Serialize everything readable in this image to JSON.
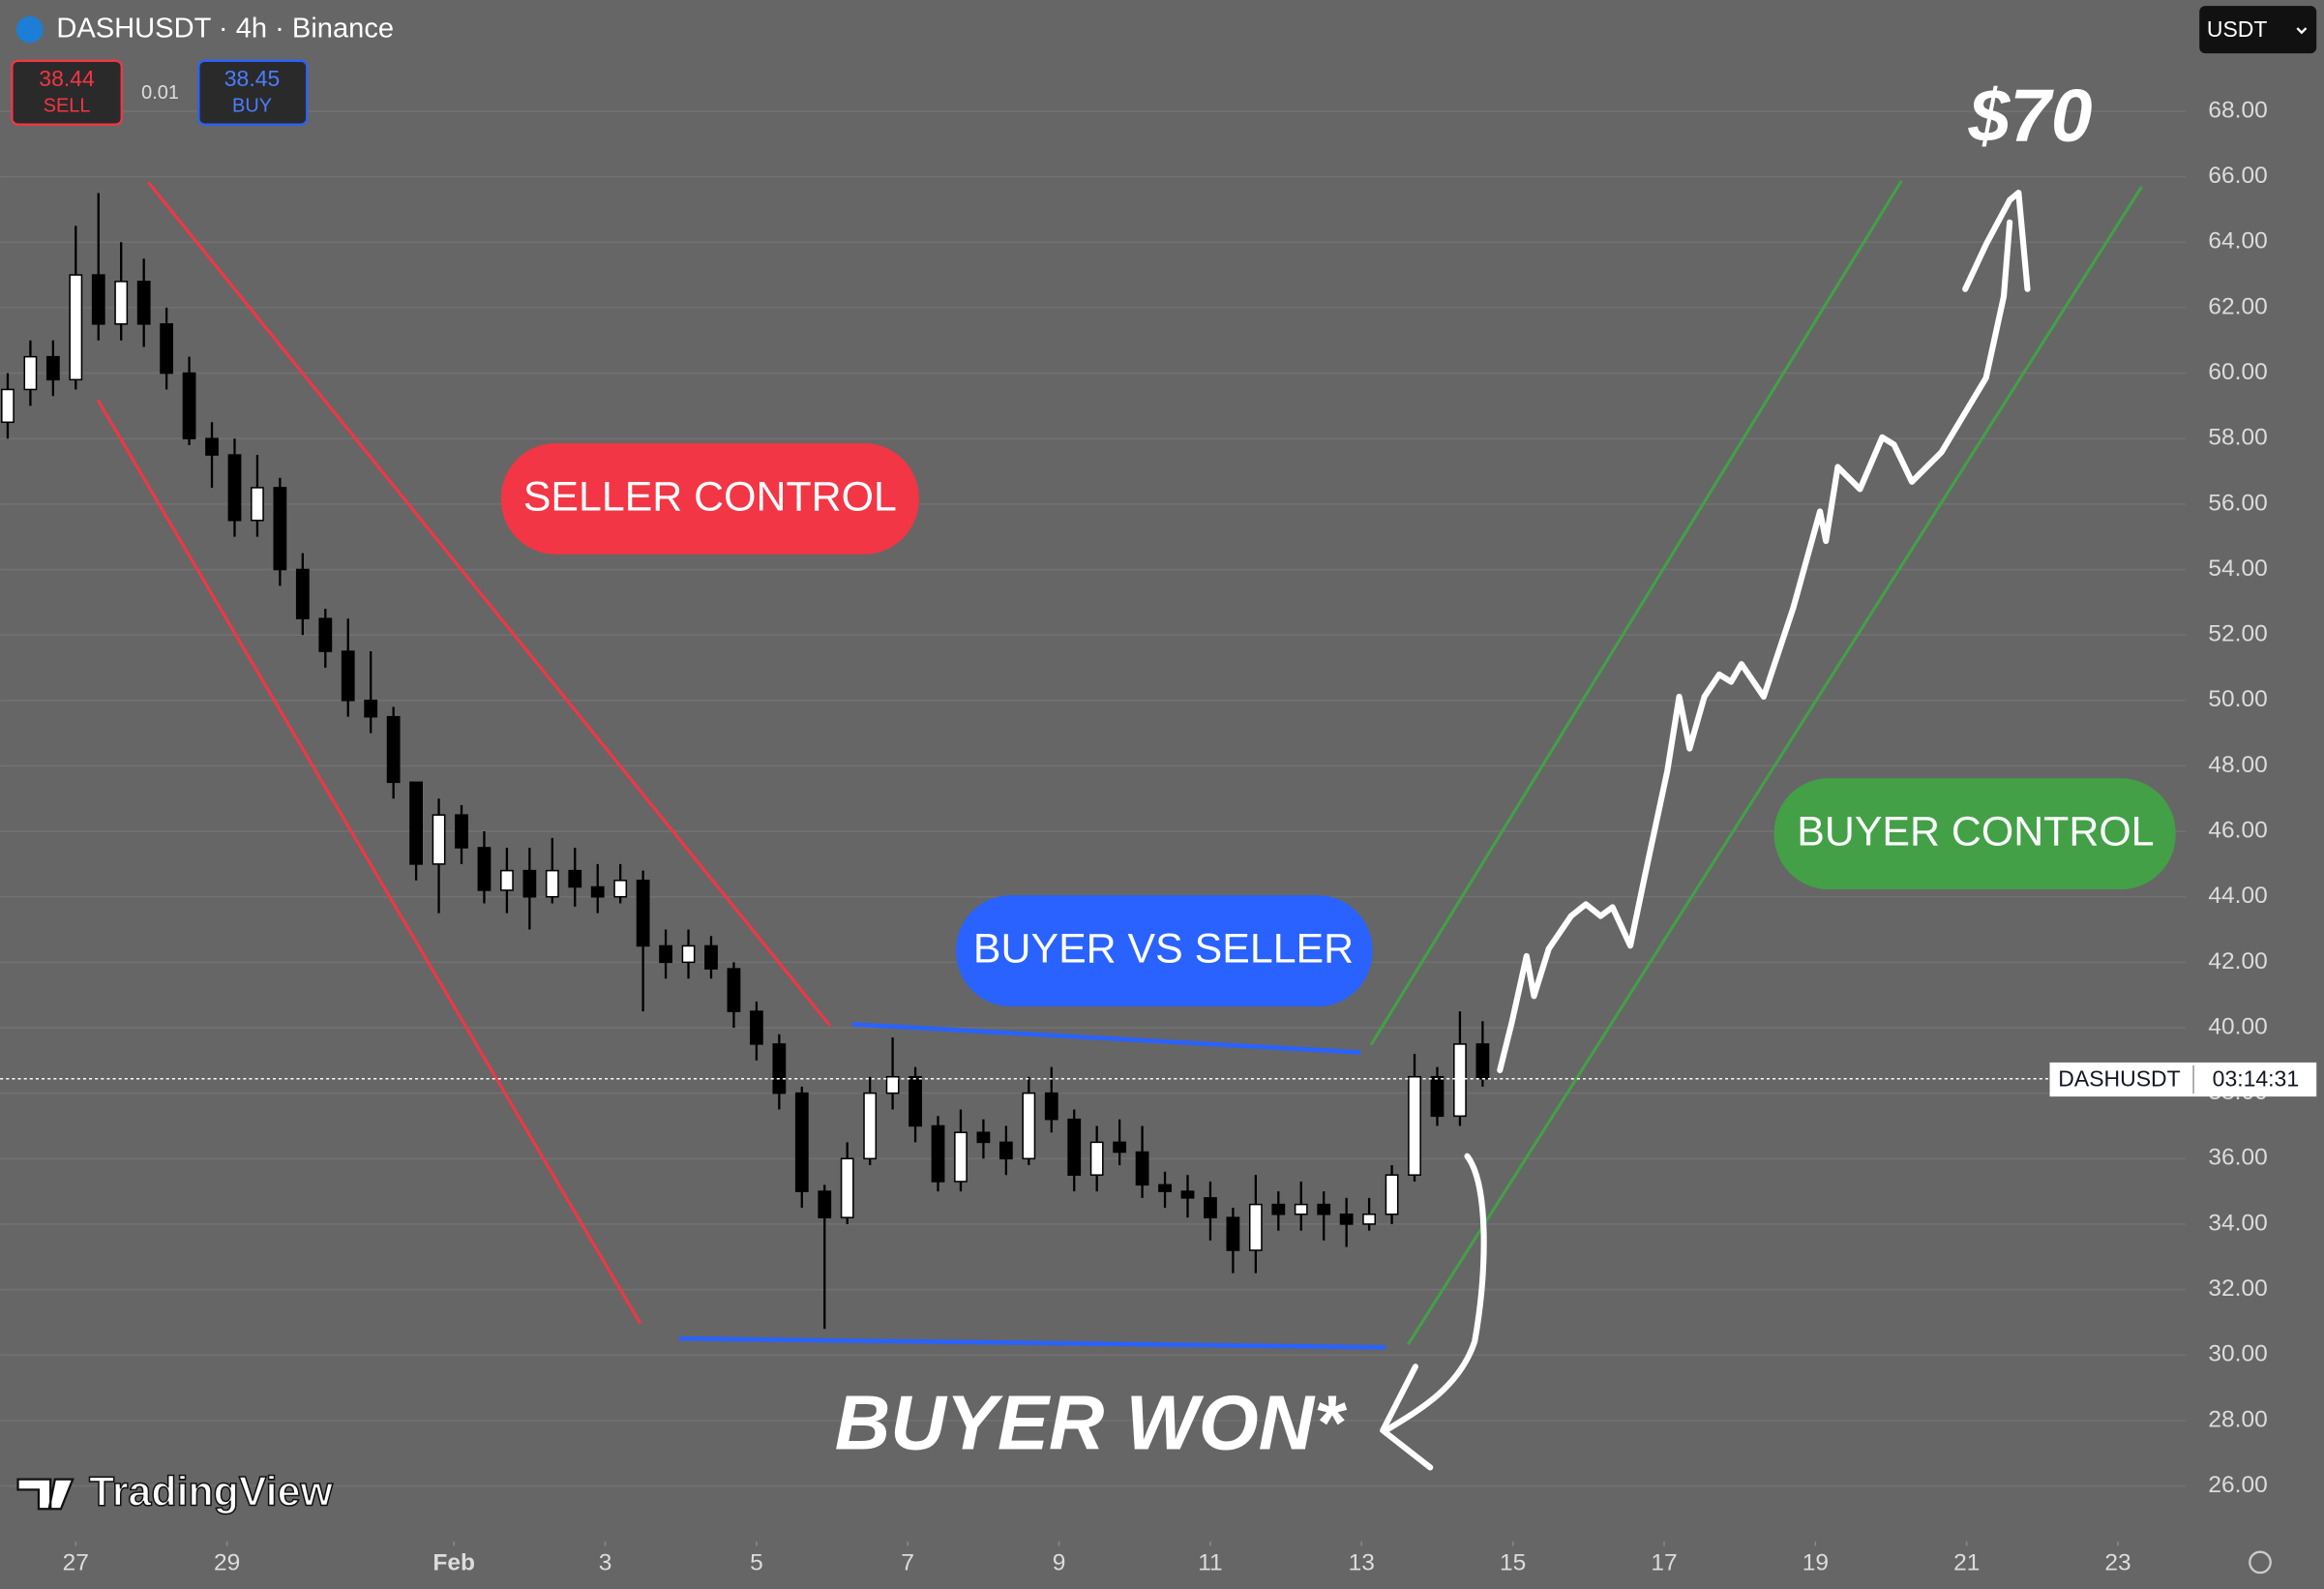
{
  "header": {
    "symbol": "DASHUSDT · 4h · Binance",
    "sell_price": "38.44",
    "sell_label": "SELL",
    "spread": "0.01",
    "buy_price": "38.45",
    "buy_label": "BUY",
    "currency": "USDT"
  },
  "price_tag": {
    "symbol": "DASHUSDT",
    "countdown": "03:14:31"
  },
  "watermark": "TradingView",
  "annotations": [
    "SELLER CONTROL",
    "BUYER VS SELLER",
    "BUYER CONTROL",
    "BUYER WON*",
    "$70"
  ],
  "chart_data": {
    "type": "candlestick",
    "up_color": "#ffffff",
    "down_color": "#000000",
    "grid": true,
    "xlim": [
      26.0,
      54.9
    ],
    "ylim": [
      24.3,
      71.4
    ],
    "xticks": [
      27,
      29,
      {
        "value": 32,
        "label": "Feb"
      },
      {
        "value": 34,
        "label": "3"
      },
      {
        "value": 36,
        "label": "5"
      },
      {
        "value": 38,
        "label": "7"
      },
      {
        "value": 40,
        "label": "9"
      },
      {
        "value": 42,
        "label": "11"
      },
      {
        "value": 44,
        "label": "13"
      },
      {
        "value": 46,
        "label": "15"
      },
      {
        "value": 48,
        "label": "17"
      },
      {
        "value": 50,
        "label": "19"
      },
      {
        "value": 52,
        "label": "21"
      },
      {
        "value": 54,
        "label": "23"
      }
    ],
    "yticks": [
      {
        "value": 26,
        "label": "26.00"
      },
      {
        "value": 28,
        "label": "28.00"
      },
      {
        "value": 30,
        "label": "30.00"
      },
      {
        "value": 32,
        "label": "32.00"
      },
      {
        "value": 34,
        "label": "34.00"
      },
      {
        "value": 36,
        "label": "36.00"
      },
      {
        "value": 38,
        "label": "38.00"
      },
      {
        "value": 40,
        "label": "40.00"
      },
      {
        "value": 42,
        "label": "42.00"
      },
      {
        "value": 44,
        "label": "44.00"
      },
      {
        "value": 46,
        "label": "46.00"
      },
      {
        "value": 48,
        "label": "48.00"
      },
      {
        "value": 50,
        "label": "50.00"
      },
      {
        "value": 52,
        "label": "52.00"
      },
      {
        "value": 54,
        "label": "54.00"
      },
      {
        "value": 56,
        "label": "56.00"
      },
      {
        "value": 58,
        "label": "58.00"
      },
      {
        "value": 60,
        "label": "60.00"
      },
      {
        "value": 62,
        "label": "62.00"
      },
      {
        "value": 64,
        "label": "64.00"
      },
      {
        "value": 66,
        "label": "66.00"
      },
      {
        "value": 68,
        "label": "68.00"
      }
    ],
    "x": [
      26.1,
      26.4,
      26.7,
      27.0,
      27.3,
      27.6,
      27.9,
      28.2,
      28.5,
      28.8,
      29.1,
      29.4,
      29.7,
      30.0,
      30.3,
      30.6,
      30.9,
      31.2,
      31.5,
      31.8,
      32.1,
      32.4,
      32.7,
      33.0,
      33.3,
      33.6,
      33.9,
      34.2,
      34.5,
      34.8,
      35.1,
      35.4,
      35.7,
      36.0,
      36.3,
      36.6,
      36.9,
      37.2,
      37.5,
      37.8,
      38.1,
      38.4,
      38.7,
      39.0,
      39.3,
      39.6,
      39.9,
      40.2,
      40.5,
      40.8,
      41.1,
      41.4,
      41.7,
      42.0,
      42.3,
      42.6,
      42.9,
      43.2,
      43.5,
      43.8,
      44.1,
      44.4,
      44.7,
      45.0,
      45.3,
      45.6
    ],
    "open": [
      58.5,
      59.5,
      60.5,
      59.8,
      63,
      61.5,
      62.8,
      61.5,
      60,
      58,
      57.5,
      55.5,
      56.5,
      54,
      52.5,
      51.5,
      50,
      49.5,
      47.5,
      45,
      46.5,
      45.5,
      44.2,
      44.8,
      44,
      44.8,
      44.3,
      44,
      44.5,
      42.5,
      42,
      42.5,
      41.8,
      40.5,
      39.5,
      38,
      35,
      34.2,
      36,
      38,
      38.5,
      37,
      35.3,
      36.8,
      36.5,
      36,
      38,
      37.2,
      35.5,
      36.5,
      36.2,
      35.2,
      35,
      34.8,
      34.2,
      33.2,
      34.6,
      34.3,
      34.6,
      34.3,
      34,
      34.3,
      35.5,
      38.5,
      37.3,
      39.5
    ],
    "high": [
      60,
      61,
      61,
      64.5,
      65.5,
      64,
      63.5,
      62,
      60.5,
      58.5,
      58,
      57.5,
      56.8,
      54.5,
      52.8,
      52.5,
      51.5,
      49.8,
      47.5,
      47,
      46.8,
      46,
      45.5,
      45.5,
      45.8,
      45.5,
      45,
      45,
      44.8,
      43,
      43,
      42.8,
      42,
      40.8,
      39.8,
      38.2,
      35.2,
      36.5,
      38.5,
      39.7,
      38.8,
      37.3,
      37.5,
      37.2,
      37,
      38.5,
      38.8,
      37.5,
      37,
      37.2,
      37,
      35.6,
      35.5,
      35.3,
      34.5,
      35.5,
      35,
      35.3,
      35,
      34.8,
      34.8,
      35.8,
      39.2,
      38.8,
      40.5,
      40.2
    ],
    "low": [
      58,
      59,
      59.3,
      59.5,
      61,
      61,
      60.8,
      59.5,
      57.8,
      56.5,
      55,
      55,
      53.5,
      52,
      51,
      49.5,
      49,
      47,
      44.5,
      43.5,
      45,
      43.8,
      43.5,
      43,
      43.8,
      43.7,
      43.5,
      43.8,
      40.5,
      41.5,
      41.5,
      41.5,
      40,
      39,
      37.5,
      34.5,
      30.8,
      34,
      35.8,
      37.5,
      36.5,
      35,
      35,
      36,
      35.5,
      35.8,
      36.8,
      35,
      35,
      35.8,
      34.8,
      34.5,
      34.2,
      33.5,
      32.5,
      32.5,
      33.8,
      33.8,
      33.5,
      33.3,
      33.8,
      34,
      35.3,
      37,
      37,
      38.2
    ],
    "close": [
      59.5,
      60.5,
      59.8,
      63,
      61.5,
      62.8,
      61.5,
      60,
      58,
      57.5,
      55.5,
      56.5,
      54,
      52.5,
      51.5,
      50,
      49.5,
      47.5,
      45,
      46.5,
      45.5,
      44.2,
      44.8,
      44,
      44.8,
      44.3,
      44,
      44.5,
      42.5,
      42,
      42.5,
      41.8,
      40.5,
      39.5,
      38,
      35,
      34.2,
      36,
      38,
      38.5,
      37,
      35.3,
      36.8,
      36.5,
      36,
      38,
      37.2,
      35.5,
      36.5,
      36.2,
      35.2,
      35,
      34.8,
      34.2,
      33.2,
      34.6,
      34.3,
      34.6,
      34.3,
      34,
      34.3,
      35.5,
      38.5,
      37.3,
      39.5,
      38.44
    ]
  }
}
